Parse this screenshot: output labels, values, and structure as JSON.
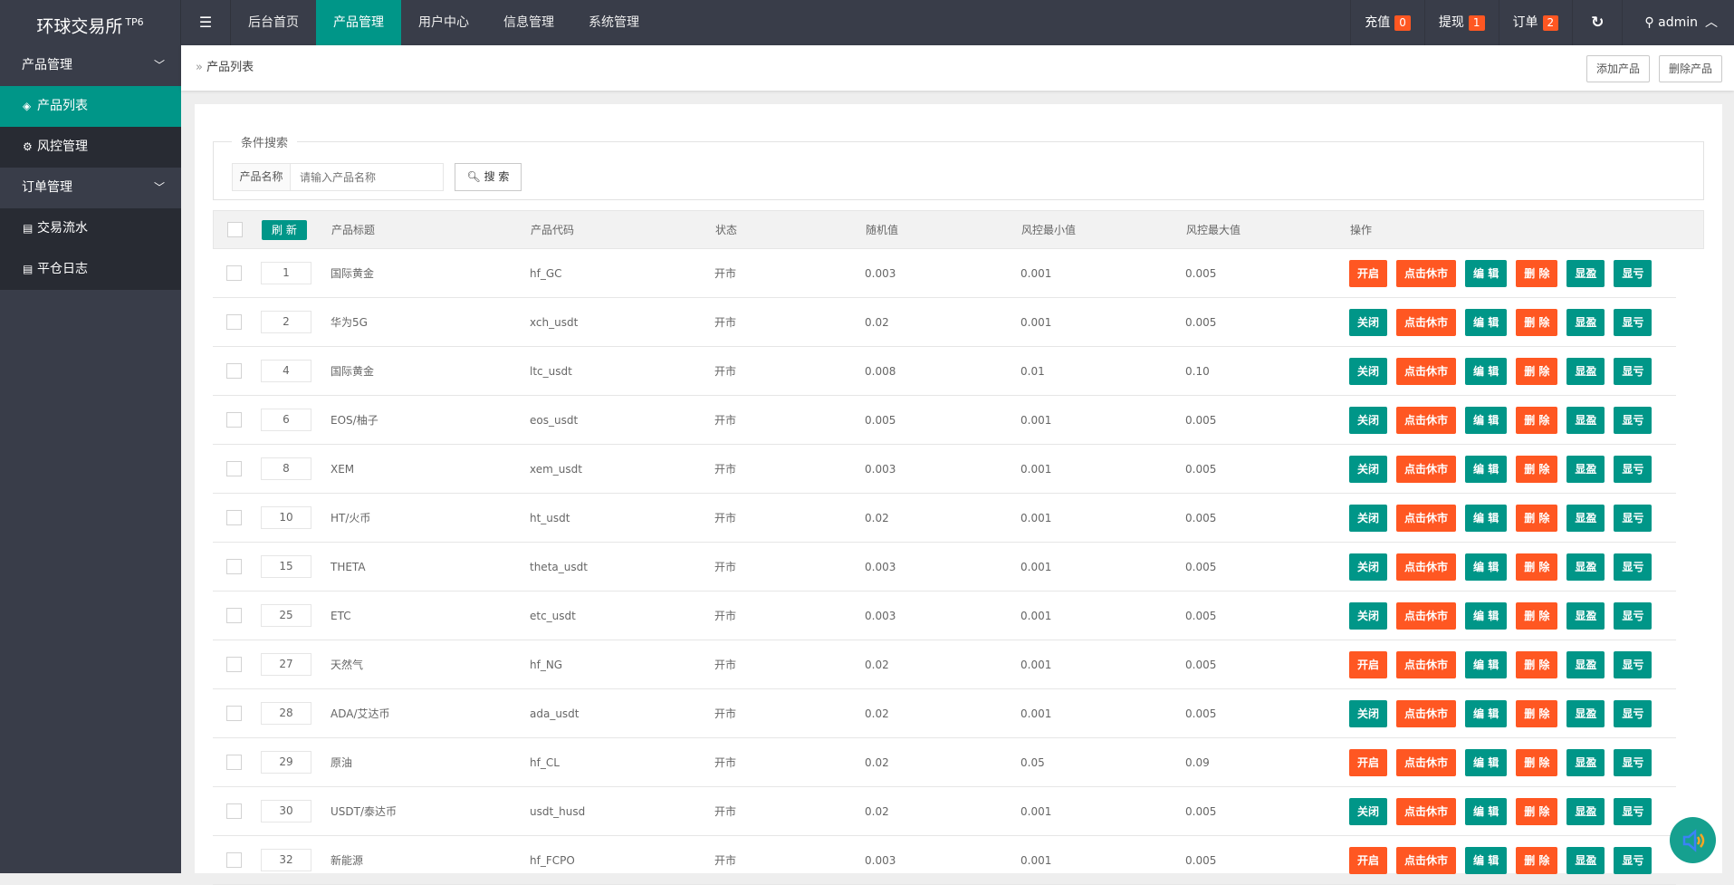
{
  "header": {
    "logo": "环球交易所",
    "logo_sup": "TP6",
    "toggle_icon": "menu-fold-icon",
    "nav": [
      "后台首页",
      "产品管理",
      "用户中心",
      "信息管理",
      "系统管理"
    ],
    "active_nav": "产品管理",
    "recharge_label": "充值",
    "recharge_count": "0",
    "withdraw_label": "提现",
    "withdraw_count": "1",
    "order_label": "订单",
    "order_count": "2",
    "user": "admin"
  },
  "sidebar": {
    "groups": [
      {
        "label": "产品管理",
        "items": [
          "产品列表",
          "风控管理"
        ]
      },
      {
        "label": "订单管理",
        "items": [
          "交易流水",
          "平仓日志"
        ]
      }
    ],
    "active": "产品列表"
  },
  "breadcrumb": {
    "current": "产品列表",
    "add_button": "添加产品",
    "delete_button": "删除产品"
  },
  "search": {
    "legend": "条件搜索",
    "field_label": "产品名称",
    "placeholder": "请输入产品名称",
    "value": "",
    "button": "搜 索"
  },
  "table": {
    "refresh": "刷 新",
    "headers": [
      "产品标题",
      "产品代码",
      "状态",
      "随机值",
      "风控最小值",
      "风控最大值",
      "操作"
    ],
    "rows": [
      [
        "1",
        "国际黄金",
        "hf_GC",
        "开市",
        "0.003",
        "0.001",
        "0.005",
        "开启"
      ],
      [
        "2",
        "华为5G",
        "xch_usdt",
        "开市",
        "0.02",
        "0.001",
        "0.005",
        "关闭"
      ],
      [
        "4",
        "国际黄金",
        "ltc_usdt",
        "开市",
        "0.008",
        "0.01",
        "0.10",
        "关闭"
      ],
      [
        "6",
        "EOS/柚子",
        "eos_usdt",
        "开市",
        "0.005",
        "0.001",
        "0.005",
        "关闭"
      ],
      [
        "8",
        "XEM",
        "xem_usdt",
        "开市",
        "0.003",
        "0.001",
        "0.005",
        "关闭"
      ],
      [
        "10",
        "HT/火币",
        "ht_usdt",
        "开市",
        "0.02",
        "0.001",
        "0.005",
        "关闭"
      ],
      [
        "15",
        "THETA",
        "theta_usdt",
        "开市",
        "0.003",
        "0.001",
        "0.005",
        "关闭"
      ],
      [
        "25",
        "ETC",
        "etc_usdt",
        "开市",
        "0.003",
        "0.001",
        "0.005",
        "关闭"
      ],
      [
        "27",
        "天然气",
        "hf_NG",
        "开市",
        "0.02",
        "0.001",
        "0.005",
        "开启"
      ],
      [
        "28",
        "ADA/艾达币",
        "ada_usdt",
        "开市",
        "0.02",
        "0.001",
        "0.005",
        "关闭"
      ],
      [
        "29",
        "原油",
        "hf_CL",
        "开市",
        "0.02",
        "0.05",
        "0.09",
        "开启"
      ],
      [
        "30",
        "USDT/泰达币",
        "usdt_husd",
        "开市",
        "0.02",
        "0.001",
        "0.005",
        "关闭"
      ],
      [
        "32",
        "新能源",
        "hf_FCPO",
        "开市",
        "0.003",
        "0.001",
        "0.005",
        "开启"
      ]
    ],
    "actions": [
      "点击休市",
      "编 辑",
      "删 除",
      "显盈",
      "显亏"
    ]
  },
  "colors": {
    "primary": "#009688",
    "danger": "#FF5722",
    "dark": "#393D49"
  }
}
